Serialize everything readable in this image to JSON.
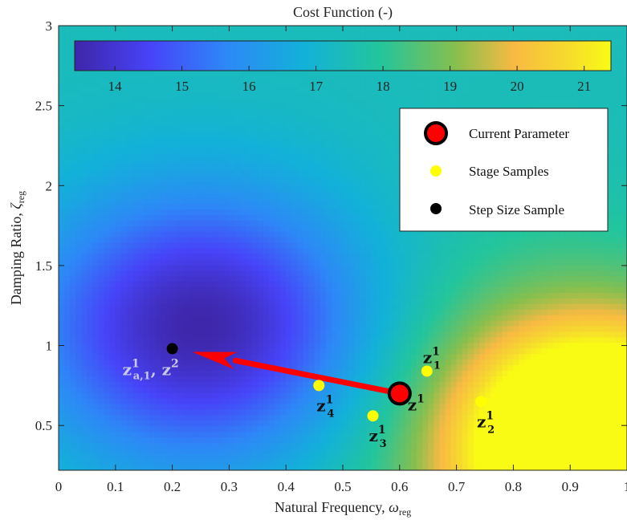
{
  "chart_data": {
    "type": "heatmap",
    "xlabel_text": "Natural Frequency,",
    "xlabel_symbol": "ω",
    "xlabel_sub": "reg",
    "ylabel_text": "Damping Ratio,",
    "ylabel_symbol": "ζ",
    "ylabel_sub": "reg",
    "xlim": [
      0,
      1
    ],
    "ylim": [
      0.22,
      3
    ],
    "x_ticks": [
      "0",
      "0.1",
      "0.2",
      "0.3",
      "0.4",
      "0.5",
      "0.6",
      "0.7",
      "0.8",
      "0.9",
      "1"
    ],
    "y_ticks": [
      "0.5",
      "1",
      "1.5",
      "2",
      "2.5",
      "3"
    ],
    "colorbar": {
      "title": "Cost Function (-)",
      "range": [
        13.4,
        21.4
      ],
      "ticks": [
        "14",
        "15",
        "16",
        "17",
        "18",
        "19",
        "20",
        "21"
      ],
      "colormap": "parula",
      "location": "top"
    },
    "legend": {
      "location": "top-right",
      "entries": [
        {
          "label": "Current Parameter",
          "color": "#ff0000",
          "edge": "#000000",
          "marker": "large-circle"
        },
        {
          "label": "Stage Samples",
          "color": "#ffff00",
          "marker": "circle"
        },
        {
          "label": "Step Size Sample",
          "color": "#000000",
          "marker": "circle"
        }
      ]
    },
    "current_parameter": {
      "x": 0.6,
      "y": 0.7,
      "label": "z",
      "sup": "1"
    },
    "stage_samples": [
      {
        "x": 0.648,
        "y": 0.84,
        "label": "z",
        "sup": "1",
        "sub": "1"
      },
      {
        "x": 0.743,
        "y": 0.65,
        "label": "z",
        "sup": "1",
        "sub": "2"
      },
      {
        "x": 0.553,
        "y": 0.56,
        "label": "z",
        "sup": "1",
        "sub": "3"
      },
      {
        "x": 0.458,
        "y": 0.75,
        "label": "z",
        "sup": "1",
        "sub": "4"
      }
    ],
    "step_size_sample": {
      "x": 0.2,
      "y": 0.98,
      "label_a": "z",
      "sup_a": "1",
      "sub_a": "a,1",
      "label_b": "z",
      "sup_b": "2",
      "separator": ","
    },
    "arrow": {
      "from": [
        0.6,
        0.7
      ],
      "to": [
        0.235,
        0.96
      ],
      "color": "#ff0000"
    },
    "cost_minimum": {
      "x": 0.25,
      "y": 1.12
    }
  }
}
